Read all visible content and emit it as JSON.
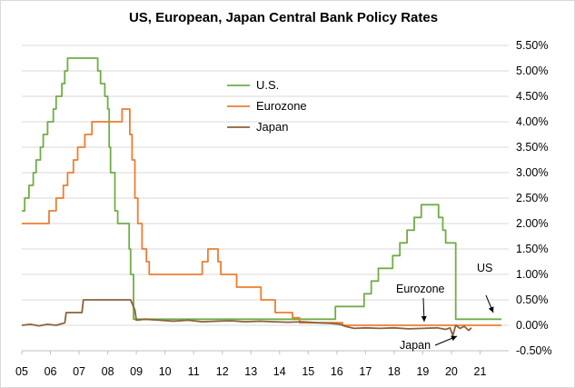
{
  "chart_data": {
    "type": "line",
    "title": "US, European, Japan Central Bank Policy Rates",
    "xlabel": "",
    "ylabel": "",
    "x_ticks": [
      "05",
      "06",
      "07",
      "08",
      "09",
      "10",
      "11",
      "12",
      "13",
      "14",
      "15",
      "16",
      "17",
      "18",
      "19",
      "20",
      "21"
    ],
    "xlim": [
      2005,
      2021.75
    ],
    "ylim": [
      -0.5,
      5.5
    ],
    "y_ticks": [
      "-0.50%",
      "0.00%",
      "0.50%",
      "1.00%",
      "1.50%",
      "2.00%",
      "2.50%",
      "3.00%",
      "3.50%",
      "4.00%",
      "4.50%",
      "5.00%",
      "5.50%"
    ],
    "y_tick_values": [
      -0.5,
      0,
      0.5,
      1,
      1.5,
      2,
      2.5,
      3,
      3.5,
      4,
      4.5,
      5,
      5.5
    ],
    "legend": [
      "U.S.",
      "Eurozone",
      "Japan"
    ],
    "legend_position": "top-center",
    "grid": true,
    "colors": {
      "us": "#70ad47",
      "eurozone": "#ed7d31",
      "japan": "#8c6239"
    },
    "annotations": [
      {
        "text": "US",
        "points_to": [
          2021.1,
          0.12
        ]
      },
      {
        "text": "Eurozone",
        "points_to": [
          2019.9,
          0.0
        ]
      },
      {
        "text": "Japan",
        "points_to": [
          2020.05,
          -0.1
        ]
      }
    ],
    "series": [
      {
        "name": "U.S.",
        "step": true,
        "points": [
          [
            2005.0,
            2.25
          ],
          [
            2005.1,
            2.5
          ],
          [
            2005.25,
            2.75
          ],
          [
            2005.4,
            3.0
          ],
          [
            2005.5,
            3.25
          ],
          [
            2005.65,
            3.5
          ],
          [
            2005.75,
            3.75
          ],
          [
            2005.9,
            4.0
          ],
          [
            2006.1,
            4.25
          ],
          [
            2006.2,
            4.5
          ],
          [
            2006.4,
            4.75
          ],
          [
            2006.5,
            5.0
          ],
          [
            2006.6,
            5.25
          ],
          [
            2007.65,
            5.0
          ],
          [
            2007.75,
            4.75
          ],
          [
            2007.9,
            4.5
          ],
          [
            2008.0,
            4.25
          ],
          [
            2008.05,
            3.5
          ],
          [
            2008.1,
            3.0
          ],
          [
            2008.25,
            2.25
          ],
          [
            2008.35,
            2.0
          ],
          [
            2008.75,
            1.5
          ],
          [
            2008.8,
            1.0
          ],
          [
            2008.9,
            0.12
          ],
          [
            2015.95,
            0.37
          ],
          [
            2016.95,
            0.62
          ],
          [
            2017.2,
            0.87
          ],
          [
            2017.45,
            1.12
          ],
          [
            2017.95,
            1.37
          ],
          [
            2018.2,
            1.62
          ],
          [
            2018.45,
            1.87
          ],
          [
            2018.7,
            2.12
          ],
          [
            2018.95,
            2.37
          ],
          [
            2019.55,
            2.12
          ],
          [
            2019.7,
            1.87
          ],
          [
            2019.8,
            1.62
          ],
          [
            2020.15,
            0.12
          ],
          [
            2021.75,
            0.12
          ]
        ]
      },
      {
        "name": "Eurozone",
        "step": true,
        "points": [
          [
            2005.0,
            2.0
          ],
          [
            2005.95,
            2.25
          ],
          [
            2006.2,
            2.5
          ],
          [
            2006.45,
            2.75
          ],
          [
            2006.6,
            3.0
          ],
          [
            2006.8,
            3.25
          ],
          [
            2006.95,
            3.5
          ],
          [
            2007.2,
            3.75
          ],
          [
            2007.45,
            4.0
          ],
          [
            2008.5,
            4.25
          ],
          [
            2008.77,
            3.75
          ],
          [
            2008.85,
            3.25
          ],
          [
            2008.95,
            2.5
          ],
          [
            2009.05,
            2.0
          ],
          [
            2009.2,
            1.5
          ],
          [
            2009.35,
            1.25
          ],
          [
            2009.45,
            1.0
          ],
          [
            2011.3,
            1.25
          ],
          [
            2011.5,
            1.5
          ],
          [
            2011.85,
            1.25
          ],
          [
            2011.95,
            1.0
          ],
          [
            2012.5,
            0.75
          ],
          [
            2013.35,
            0.5
          ],
          [
            2013.85,
            0.25
          ],
          [
            2014.45,
            0.15
          ],
          [
            2014.7,
            0.05
          ],
          [
            2016.2,
            0.0
          ],
          [
            2021.75,
            0.0
          ]
        ]
      },
      {
        "name": "Japan",
        "step": false,
        "points": [
          [
            2005.0,
            0.0
          ],
          [
            2005.3,
            0.02
          ],
          [
            2005.6,
            -0.01
          ],
          [
            2005.9,
            0.02
          ],
          [
            2006.2,
            0.0
          ],
          [
            2006.5,
            0.05
          ],
          [
            2006.55,
            0.25
          ],
          [
            2007.1,
            0.25
          ],
          [
            2007.15,
            0.5
          ],
          [
            2008.8,
            0.5
          ],
          [
            2008.95,
            0.3
          ],
          [
            2009.0,
            0.1
          ],
          [
            2009.3,
            0.12
          ],
          [
            2009.8,
            0.1
          ],
          [
            2010.3,
            0.08
          ],
          [
            2010.8,
            0.1
          ],
          [
            2011.3,
            0.07
          ],
          [
            2011.8,
            0.08
          ],
          [
            2012.3,
            0.09
          ],
          [
            2012.8,
            0.07
          ],
          [
            2013.3,
            0.08
          ],
          [
            2013.8,
            0.07
          ],
          [
            2014.3,
            0.06
          ],
          [
            2014.8,
            0.07
          ],
          [
            2015.3,
            0.05
          ],
          [
            2015.8,
            0.04
          ],
          [
            2016.1,
            0.02
          ],
          [
            2016.3,
            -0.02
          ],
          [
            2016.6,
            -0.06
          ],
          [
            2017.0,
            -0.05
          ],
          [
            2017.5,
            -0.06
          ],
          [
            2018.0,
            -0.05
          ],
          [
            2018.5,
            -0.07
          ],
          [
            2019.0,
            -0.06
          ],
          [
            2019.5,
            -0.05
          ],
          [
            2019.8,
            -0.08
          ],
          [
            2019.95,
            -0.05
          ],
          [
            2020.05,
            -0.2
          ],
          [
            2020.15,
            0.0
          ],
          [
            2020.3,
            -0.06
          ],
          [
            2020.45,
            -0.02
          ],
          [
            2020.6,
            -0.1
          ],
          [
            2020.7,
            -0.05
          ]
        ]
      }
    ]
  }
}
